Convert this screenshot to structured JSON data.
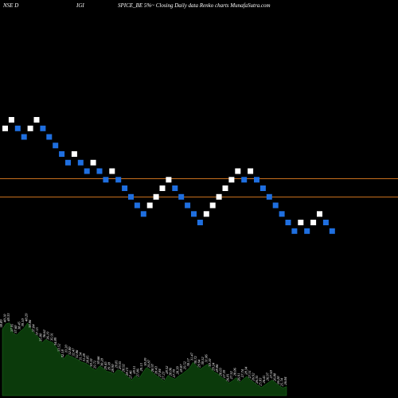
{
  "header": {
    "left": "NSE D",
    "mid": "IGI",
    "right": "SPICE_BE 5%~ Closing Daily data Renko charts MunafaSutra.com"
  },
  "colors": {
    "up": "#ffffff",
    "down": "#1f6fe0",
    "line": "#c8701e",
    "area": "#0b3a0b",
    "background": "#000000"
  },
  "chart_data": {
    "type": "renko",
    "grid": false,
    "horizontal_levels": [
      32.1,
      31.0
    ],
    "ylim": [
      18,
      40
    ],
    "bricks": [
      {
        "dir": "up",
        "value": 35.0
      },
      {
        "dir": "up",
        "value": 35.5
      },
      {
        "dir": "down",
        "value": 35.0
      },
      {
        "dir": "down",
        "value": 34.5
      },
      {
        "dir": "up",
        "value": 35.0
      },
      {
        "dir": "up",
        "value": 35.5
      },
      {
        "dir": "down",
        "value": 35.0
      },
      {
        "dir": "down",
        "value": 34.5
      },
      {
        "dir": "down",
        "value": 34.0
      },
      {
        "dir": "down",
        "value": 33.5
      },
      {
        "dir": "down",
        "value": 33.0
      },
      {
        "dir": "up",
        "value": 33.5
      },
      {
        "dir": "down",
        "value": 33.0
      },
      {
        "dir": "down",
        "value": 32.5
      },
      {
        "dir": "up",
        "value": 33.0
      },
      {
        "dir": "down",
        "value": 32.5
      },
      {
        "dir": "down",
        "value": 32.0
      },
      {
        "dir": "up",
        "value": 32.5
      },
      {
        "dir": "down",
        "value": 32.0
      },
      {
        "dir": "down",
        "value": 31.5
      },
      {
        "dir": "down",
        "value": 31.0
      },
      {
        "dir": "down",
        "value": 30.5
      },
      {
        "dir": "down",
        "value": 30.0
      },
      {
        "dir": "up",
        "value": 30.5
      },
      {
        "dir": "up",
        "value": 31.0
      },
      {
        "dir": "up",
        "value": 31.5
      },
      {
        "dir": "up",
        "value": 32.0
      },
      {
        "dir": "down",
        "value": 31.5
      },
      {
        "dir": "down",
        "value": 31.0
      },
      {
        "dir": "down",
        "value": 30.5
      },
      {
        "dir": "down",
        "value": 30.0
      },
      {
        "dir": "down",
        "value": 29.5
      },
      {
        "dir": "up",
        "value": 30.0
      },
      {
        "dir": "up",
        "value": 30.5
      },
      {
        "dir": "up",
        "value": 31.0
      },
      {
        "dir": "up",
        "value": 31.5
      },
      {
        "dir": "up",
        "value": 32.0
      },
      {
        "dir": "up",
        "value": 32.5
      },
      {
        "dir": "down",
        "value": 32.0
      },
      {
        "dir": "up",
        "value": 32.5
      },
      {
        "dir": "down",
        "value": 32.0
      },
      {
        "dir": "down",
        "value": 31.5
      },
      {
        "dir": "down",
        "value": 31.0
      },
      {
        "dir": "down",
        "value": 30.5
      },
      {
        "dir": "down",
        "value": 30.0
      },
      {
        "dir": "down",
        "value": 29.5
      },
      {
        "dir": "down",
        "value": 29.0
      },
      {
        "dir": "up",
        "value": 29.5
      },
      {
        "dir": "down",
        "value": 29.0
      },
      {
        "dir": "up",
        "value": 29.5
      },
      {
        "dir": "up",
        "value": 30.0
      },
      {
        "dir": "down",
        "value": 29.5
      },
      {
        "dir": "down",
        "value": 29.0
      }
    ],
    "volume_labels": [
      "38.89",
      "40.10",
      "40.33",
      "37.95",
      "37.60",
      "38.45",
      "39.10",
      "40.29",
      "38.86",
      "37.84",
      "37.15",
      "35.80",
      "36.62",
      "36.19",
      "35.91",
      "34.89",
      "33.52",
      "32.18",
      "33.20",
      "32.80",
      "32.47",
      "32.06",
      "31.54",
      "31.28",
      "30.85",
      "30.10",
      "29.72",
      "30.66",
      "30.20",
      "29.45",
      "29.30",
      "28.90",
      "29.81",
      "29.55",
      "28.92",
      "28.13",
      "27.46",
      "28.51",
      "27.86",
      "29.13",
      "30.29",
      "29.87",
      "28.97",
      "28.43",
      "27.84",
      "27.23",
      "28.52",
      "28.06",
      "27.70",
      "28.39",
      "28.87",
      "29.52",
      "30.17",
      "31.47",
      "30.72",
      "29.94",
      "30.52",
      "31.06",
      "30.10",
      "29.24",
      "28.86",
      "28.03",
      "27.59",
      "26.81",
      "27.32",
      "28.06",
      "26.91",
      "27.74",
      "28.34",
      "27.51",
      "26.92",
      "26.35",
      "25.83",
      "26.41",
      "26.97",
      "27.50",
      "26.88",
      "26.20",
      "25.74",
      "26.04"
    ]
  }
}
